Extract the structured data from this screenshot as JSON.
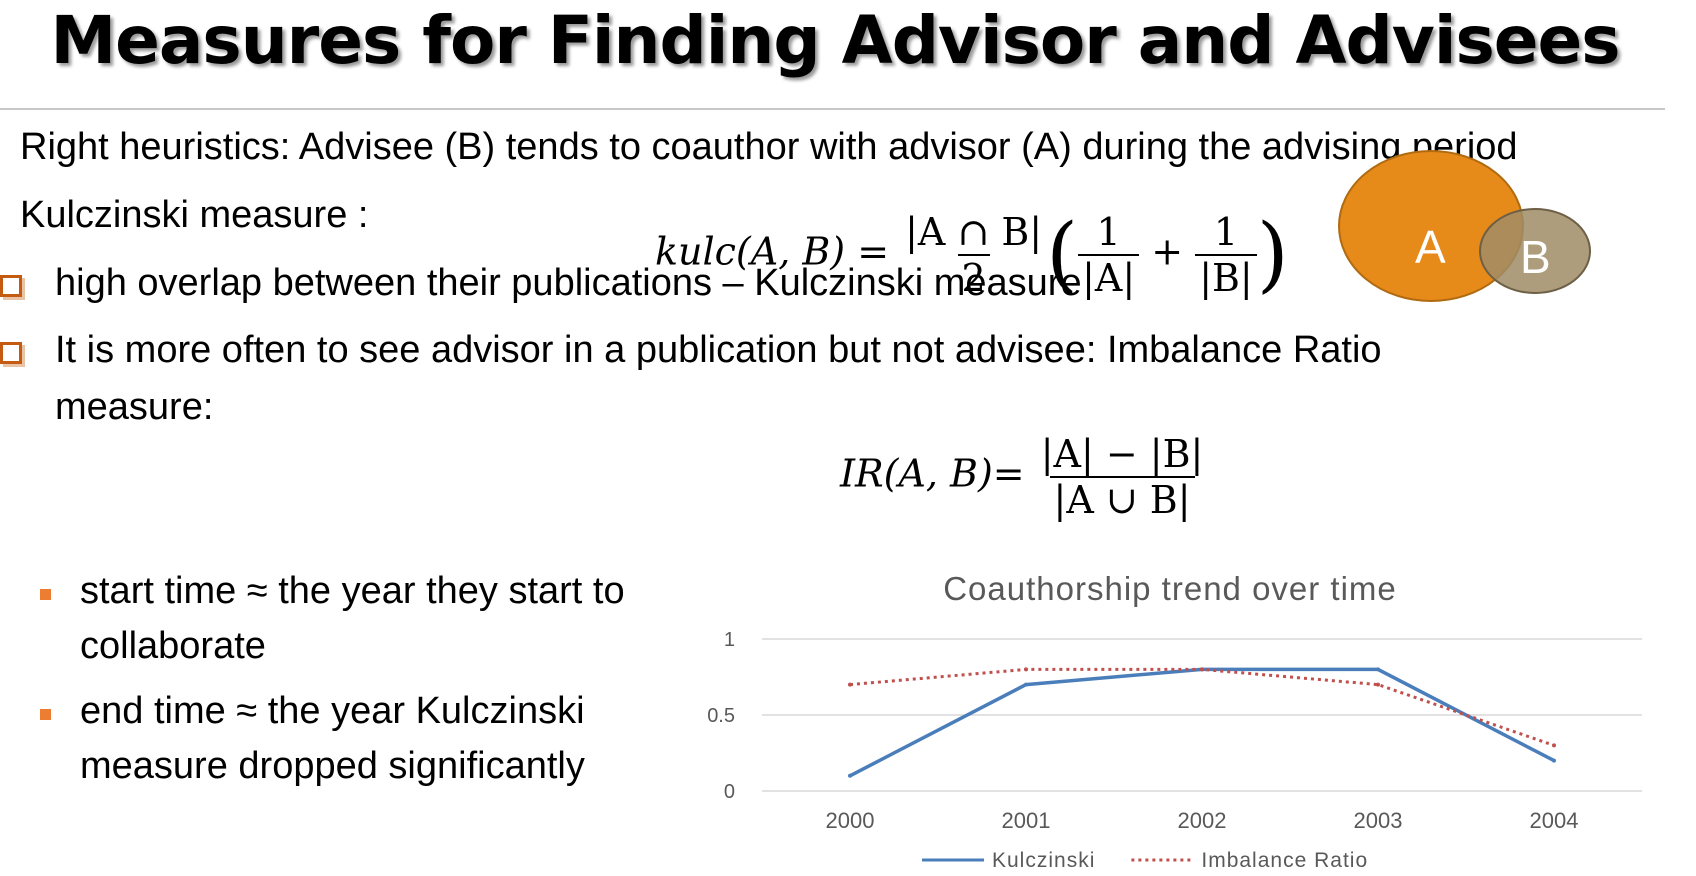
{
  "title": "Measures for Finding Advisor and Advisees",
  "intro": "Right heuristics: Advisee (B) tends to coauthor with advisor (A) during the advising period",
  "kulc_heading": "Kulczinski measure :",
  "bullets": [
    "high overlap between their publications – Kulczinski measure",
    "It is more often to see advisor in a publication but not advisee: Imbalance Ratio",
    "measure:"
  ],
  "sub_bullets": [
    {
      "line1": "start time ≈ the year they start to",
      "line2": "collaborate"
    },
    {
      "line1": "end time ≈ the year Kulczinski",
      "line2": "measure dropped significantly"
    }
  ],
  "formula_kulc": {
    "lhs": "kulc(A, B) =",
    "frac1_num": "|A ∩ B|",
    "frac1_den": "2",
    "frac2_num": "1",
    "frac2_den": "|A|",
    "plus": "+",
    "frac3_num": "1",
    "frac3_den": "|B|"
  },
  "formula_ir": {
    "lhs": "IR(A, B)=",
    "num": "|A| − |B|",
    "den": "|A ∪ B|"
  },
  "venn": {
    "a": "A",
    "b": "B",
    "color_a": "#e68a1a",
    "color_b": "#a08c66"
  },
  "chart_data": {
    "type": "line",
    "title": "Coauthorship trend over time",
    "categories": [
      "2000",
      "2001",
      "2002",
      "2003",
      "2004"
    ],
    "y_ticks": [
      "0",
      "0.5",
      "1"
    ],
    "ylim": [
      0,
      1
    ],
    "grid": true,
    "legend_position": "bottom",
    "series": [
      {
        "name": "Kulczinski",
        "values": [
          0.1,
          0.7,
          0.8,
          0.8,
          0.2
        ],
        "color": "#4a7ebb",
        "style": "solid"
      },
      {
        "name": "Imbalance Ratio",
        "values": [
          0.7,
          0.8,
          0.8,
          0.7,
          0.3
        ],
        "color": "#c0504d",
        "style": "dotted"
      }
    ]
  }
}
